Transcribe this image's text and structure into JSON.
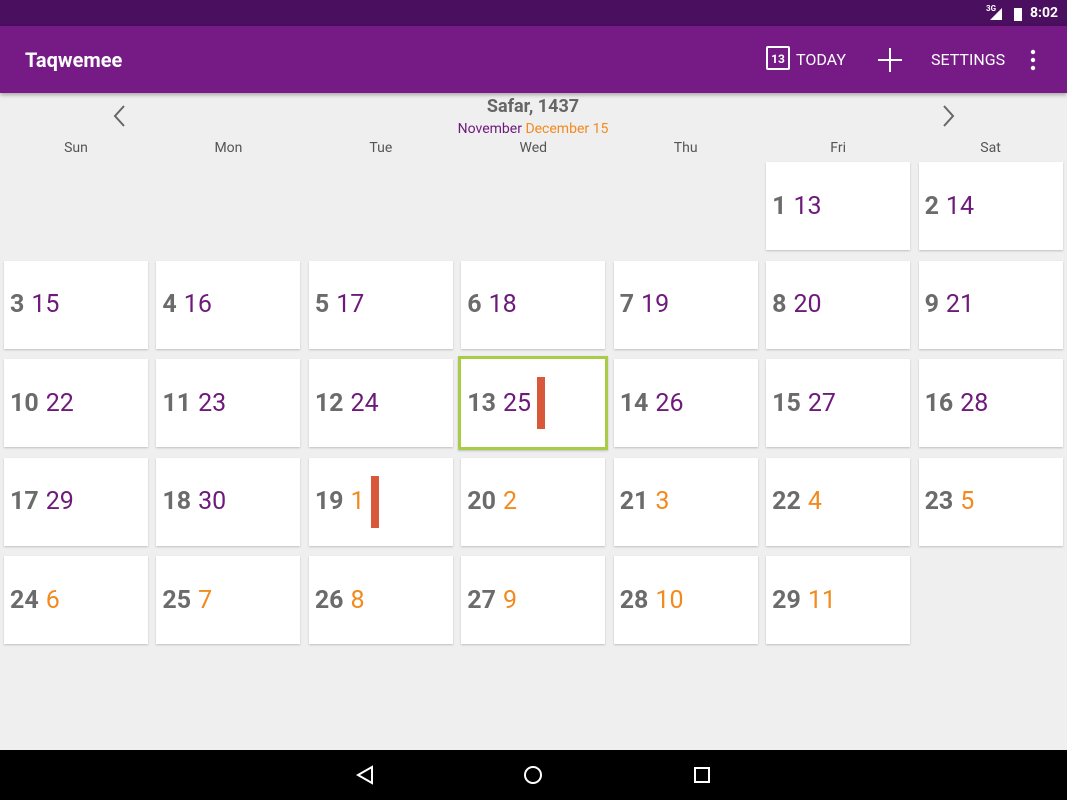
{
  "status_bar": {
    "network": "3G",
    "time": "8:02"
  },
  "app_bar": {
    "title": "Taqwemee",
    "today_icon_day": "13",
    "today": "TODAY",
    "settings": "SETTINGS"
  },
  "header": {
    "hijri_month": "Safar, 1437",
    "gregorian_month_1": "November",
    "gregorian_month_2": "December 15"
  },
  "weekdays": [
    "Sun",
    "Mon",
    "Tue",
    "Wed",
    "Thu",
    "Fri",
    "Sat"
  ],
  "calendar": {
    "start_column": 5,
    "hijri_color": "#6b6b6b",
    "event_color": "#d9583a",
    "today_border": "#a8cc4a",
    "cells": [
      {
        "hijri": "1",
        "gregorian": "13",
        "color": "#6d1a7a"
      },
      {
        "hijri": "2",
        "gregorian": "14",
        "color": "#6d1a7a"
      },
      {
        "hijri": "3",
        "gregorian": "15",
        "color": "#6d1a7a"
      },
      {
        "hijri": "4",
        "gregorian": "16",
        "color": "#6d1a7a"
      },
      {
        "hijri": "5",
        "gregorian": "17",
        "color": "#6d1a7a"
      },
      {
        "hijri": "6",
        "gregorian": "18",
        "color": "#6d1a7a"
      },
      {
        "hijri": "7",
        "gregorian": "19",
        "color": "#6d1a7a"
      },
      {
        "hijri": "8",
        "gregorian": "20",
        "color": "#6d1a7a"
      },
      {
        "hijri": "9",
        "gregorian": "21",
        "color": "#6d1a7a"
      },
      {
        "hijri": "10",
        "gregorian": "22",
        "color": "#6d1a7a"
      },
      {
        "hijri": "11",
        "gregorian": "23",
        "color": "#6d1a7a"
      },
      {
        "hijri": "12",
        "gregorian": "24",
        "color": "#6d1a7a"
      },
      {
        "hijri": "13",
        "gregorian": "25",
        "color": "#6d1a7a",
        "event": true,
        "today": true
      },
      {
        "hijri": "14",
        "gregorian": "26",
        "color": "#6d1a7a"
      },
      {
        "hijri": "15",
        "gregorian": "27",
        "color": "#6d1a7a"
      },
      {
        "hijri": "16",
        "gregorian": "28",
        "color": "#6d1a7a"
      },
      {
        "hijri": "17",
        "gregorian": "29",
        "color": "#6d1a7a"
      },
      {
        "hijri": "18",
        "gregorian": "30",
        "color": "#6d1a7a"
      },
      {
        "hijri": "19",
        "gregorian": "1",
        "color": "#f28a1e",
        "event": true
      },
      {
        "hijri": "20",
        "gregorian": "2",
        "color": "#f28a1e"
      },
      {
        "hijri": "21",
        "gregorian": "3",
        "color": "#f28a1e"
      },
      {
        "hijri": "22",
        "gregorian": "4",
        "color": "#f28a1e"
      },
      {
        "hijri": "23",
        "gregorian": "5",
        "color": "#f28a1e"
      },
      {
        "hijri": "24",
        "gregorian": "6",
        "color": "#f28a1e"
      },
      {
        "hijri": "25",
        "gregorian": "7",
        "color": "#f28a1e"
      },
      {
        "hijri": "26",
        "gregorian": "8",
        "color": "#f28a1e"
      },
      {
        "hijri": "27",
        "gregorian": "9",
        "color": "#f28a1e"
      },
      {
        "hijri": "28",
        "gregorian": "10",
        "color": "#f28a1e"
      },
      {
        "hijri": "29",
        "gregorian": "11",
        "color": "#f28a1e"
      }
    ]
  }
}
